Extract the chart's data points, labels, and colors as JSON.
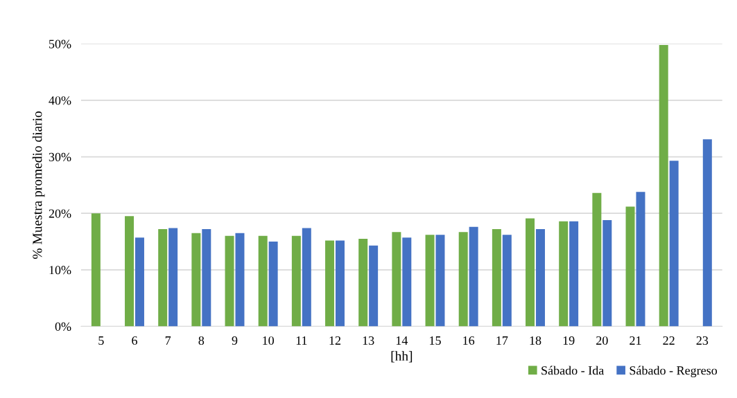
{
  "chart_data": {
    "type": "bar",
    "categories": [
      "5",
      "6",
      "7",
      "8",
      "9",
      "10",
      "11",
      "12",
      "13",
      "14",
      "15",
      "16",
      "17",
      "18",
      "19",
      "20",
      "21",
      "22",
      "23"
    ],
    "series": [
      {
        "name": "Sábado - Ida",
        "color": "#70ad47",
        "values": [
          20.0,
          19.5,
          17.2,
          16.5,
          16.0,
          16.0,
          16.0,
          15.2,
          15.5,
          16.7,
          16.2,
          16.7,
          17.2,
          19.1,
          18.6,
          23.6,
          21.2,
          49.8,
          null
        ]
      },
      {
        "name": "Sábado - Regreso",
        "color": "#4472c4",
        "values": [
          null,
          15.7,
          17.4,
          17.2,
          16.5,
          15.0,
          17.4,
          15.2,
          14.3,
          15.7,
          16.2,
          17.6,
          16.2,
          17.2,
          18.6,
          18.8,
          23.8,
          29.3,
          33.1
        ]
      }
    ],
    "xlabel": "[hh]",
    "ylabel": "% Muestra promedio diario",
    "ylim": [
      0,
      50
    ],
    "yticks": [
      {
        "value": 0,
        "label": "0%"
      },
      {
        "value": 10,
        "label": "10%"
      },
      {
        "value": 20,
        "label": "20%"
      },
      {
        "value": 30,
        "label": "30%"
      },
      {
        "value": 40,
        "label": "40%"
      },
      {
        "value": 50,
        "label": "50%"
      }
    ],
    "grid": "y",
    "legend": "bottom right"
  }
}
